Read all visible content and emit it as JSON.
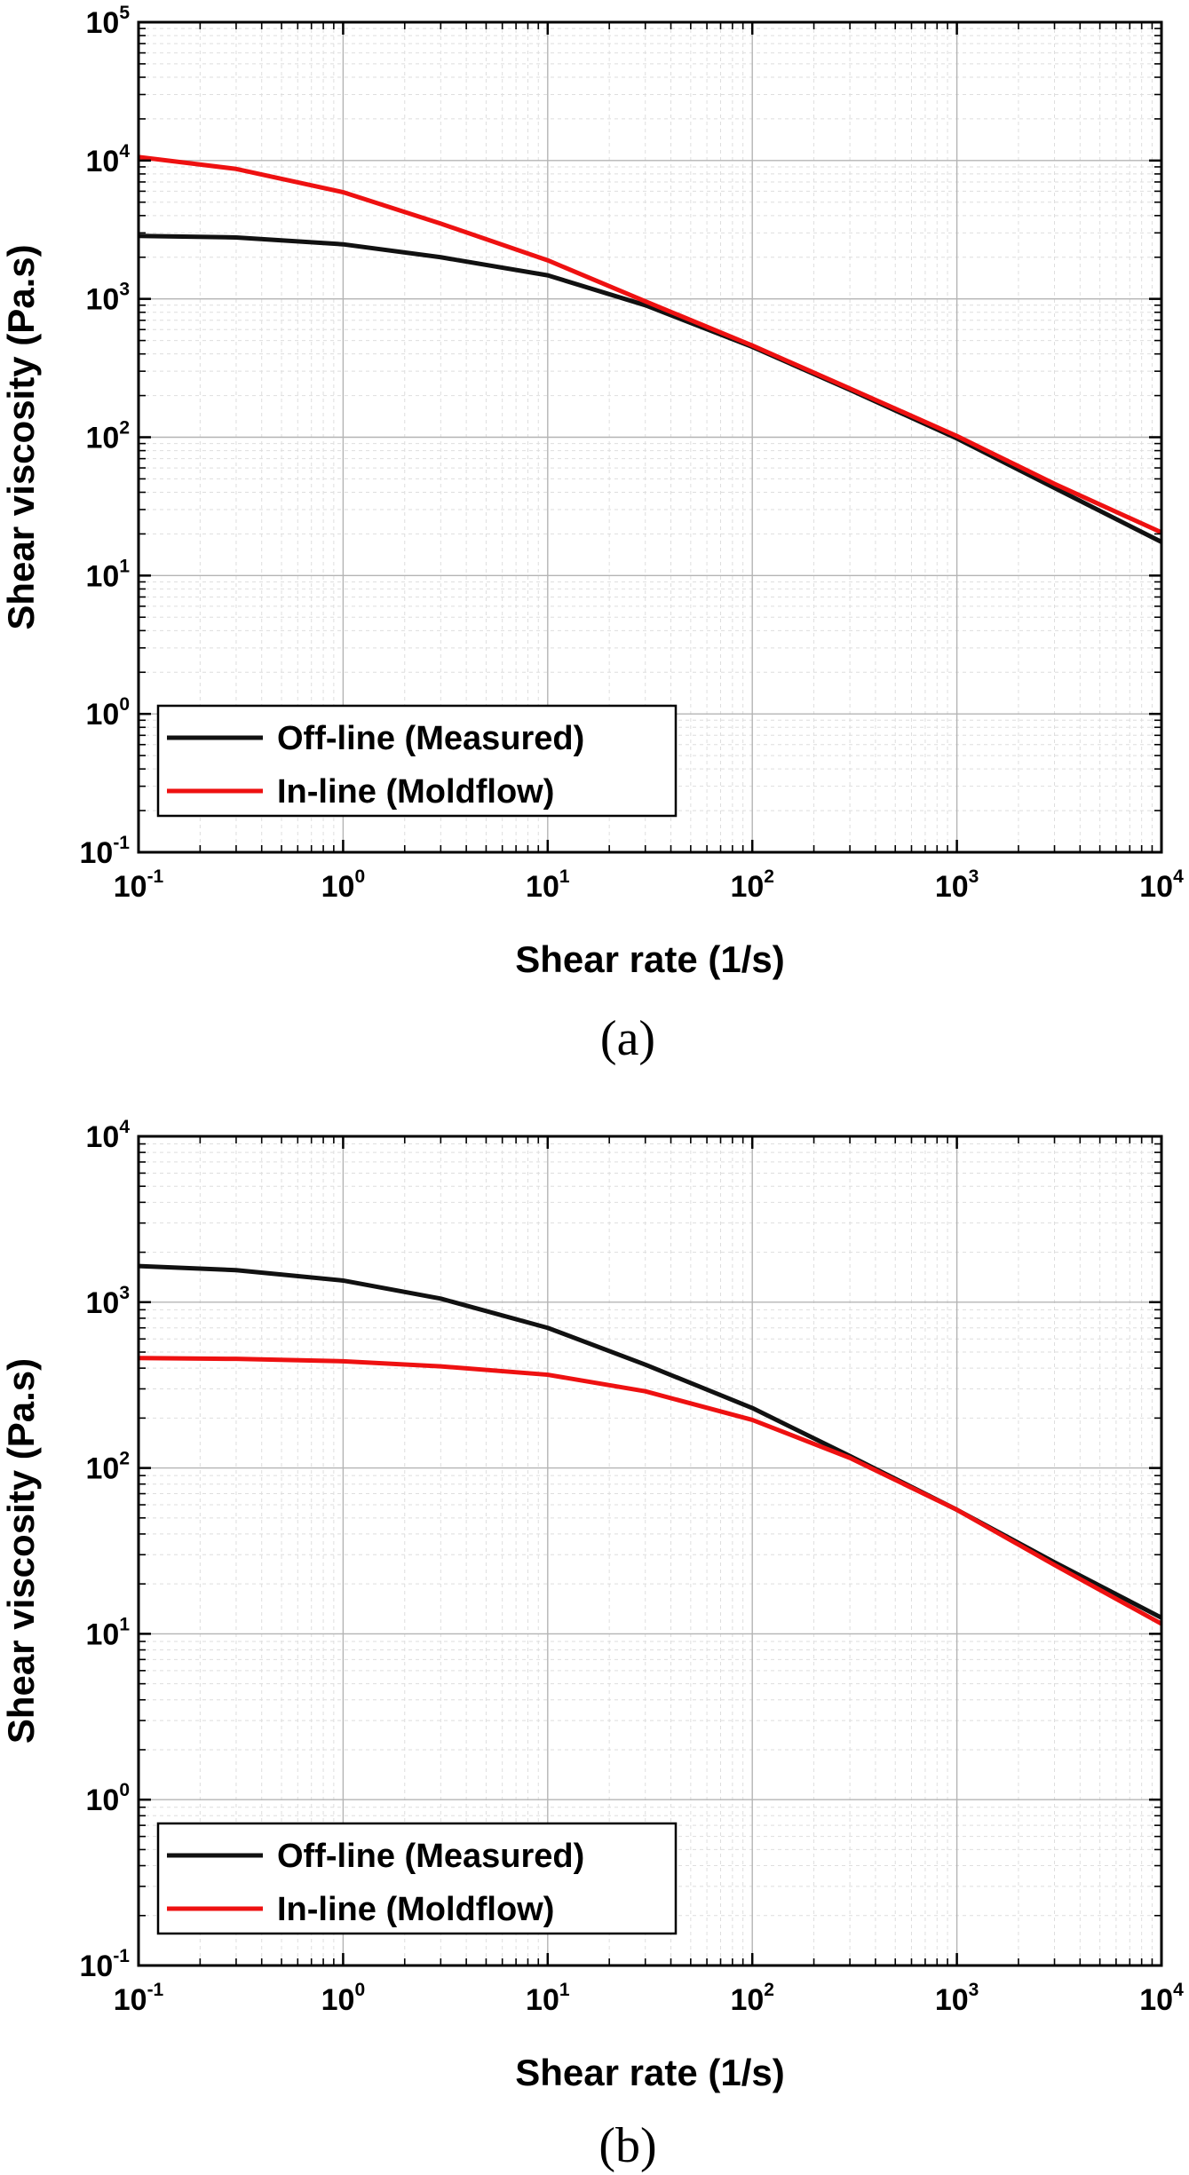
{
  "chart_data": [
    {
      "type": "line",
      "caption": "(a)",
      "xlabel": "Shear rate (1/s)",
      "ylabel": "Shear viscosity (Pa.s)",
      "xscale": "log",
      "yscale": "log",
      "xlim": [
        0.1,
        10000
      ],
      "ylim": [
        0.1,
        100000
      ],
      "x_ticks": [
        {
          "base": "10",
          "exp": "-1"
        },
        {
          "base": "10",
          "exp": "0"
        },
        {
          "base": "10",
          "exp": "1"
        },
        {
          "base": "10",
          "exp": "2"
        },
        {
          "base": "10",
          "exp": "3"
        },
        {
          "base": "10",
          "exp": "4"
        }
      ],
      "y_ticks": [
        {
          "base": "10",
          "exp": "-1"
        },
        {
          "base": "10",
          "exp": "0"
        },
        {
          "base": "10",
          "exp": "1"
        },
        {
          "base": "10",
          "exp": "2"
        },
        {
          "base": "10",
          "exp": "3"
        },
        {
          "base": "10",
          "exp": "4"
        },
        {
          "base": "10",
          "exp": "5"
        }
      ],
      "grid": true,
      "legend_position": "bottom-left",
      "x": [
        0.1,
        0.3,
        1,
        3,
        10,
        30,
        100,
        300,
        1000,
        3000,
        10000
      ],
      "series": [
        {
          "name": "Off-line (Measured)",
          "color": "#111111",
          "values": [
            2850,
            2780,
            2480,
            2000,
            1480,
            900,
            450,
            220,
            98,
            43,
            17.5
          ]
        },
        {
          "name": "In-line (Moldflow)",
          "color": "#ee1111",
          "values": [
            10600,
            8700,
            5900,
            3500,
            1900,
            960,
            460,
            225,
            102,
            46,
            20.5
          ]
        }
      ]
    },
    {
      "type": "line",
      "caption": "(b)",
      "xlabel": "Shear rate (1/s)",
      "ylabel": "Shear viscosity (Pa.s)",
      "xscale": "log",
      "yscale": "log",
      "xlim": [
        0.1,
        10000
      ],
      "ylim": [
        0.1,
        10000
      ],
      "x_ticks": [
        {
          "base": "10",
          "exp": "-1"
        },
        {
          "base": "10",
          "exp": "0"
        },
        {
          "base": "10",
          "exp": "1"
        },
        {
          "base": "10",
          "exp": "2"
        },
        {
          "base": "10",
          "exp": "3"
        },
        {
          "base": "10",
          "exp": "4"
        }
      ],
      "y_ticks": [
        {
          "base": "10",
          "exp": "-1"
        },
        {
          "base": "10",
          "exp": "0"
        },
        {
          "base": "10",
          "exp": "1"
        },
        {
          "base": "10",
          "exp": "2"
        },
        {
          "base": "10",
          "exp": "3"
        },
        {
          "base": "10",
          "exp": "4"
        }
      ],
      "grid": true,
      "legend_position": "bottom-left",
      "x": [
        0.1,
        0.3,
        1,
        3,
        10,
        30,
        100,
        300,
        1000,
        3000,
        10000
      ],
      "series": [
        {
          "name": "Off-line (Measured)",
          "color": "#111111",
          "values": [
            1650,
            1560,
            1350,
            1050,
            700,
            420,
            230,
            118,
            56,
            27,
            12.5
          ]
        },
        {
          "name": "In-line (Moldflow)",
          "color": "#ee1111",
          "values": [
            460,
            455,
            440,
            410,
            365,
            290,
            195,
            115,
            56,
            26,
            11.5
          ]
        }
      ]
    }
  ]
}
